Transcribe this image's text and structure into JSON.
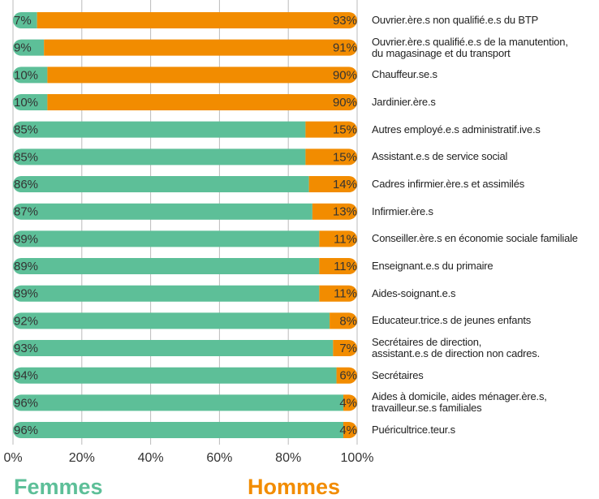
{
  "chart_data": {
    "type": "stacked-bar-horizontal",
    "categories": [
      "Ouvrier.ère.s non qualifié.e.s du BTP",
      "Ouvrier.ère.s qualifié.e.s de la manutention,\ndu magasinage et du transport",
      "Chauffeur.se.s",
      "Jardinier.ère.s",
      "Autres employé.e.s administratif.ive.s",
      "Assistant.e.s de service social",
      "Cadres infirmier.ère.s et assimilés",
      "Infirmier.ère.s",
      "Conseiller.ère.s en économie sociale familiale",
      "Enseignant.e.s du primaire",
      "Aides-soignant.e.s",
      "Educateur.trice.s de jeunes enfants",
      "Secrétaires de direction,\nassistant.e.s de direction non cadres.",
      "Secrétaires",
      "Aides à domicile, aides ménager.ère.s,\ntravailleur.se.s familiales",
      "Puéricultrice.teur.s"
    ],
    "series": [
      {
        "name": "Femmes",
        "color": "#5dbf98",
        "values": [
          7,
          9,
          10,
          10,
          85,
          85,
          86,
          87,
          89,
          89,
          89,
          92,
          93,
          94,
          96,
          96
        ],
        "value_labels": [
          "7%",
          "9%",
          "10%",
          "10%",
          "85%",
          "85%",
          "86%",
          "87%",
          "89%",
          "89%",
          "89%",
          "92%",
          "93%",
          "94%",
          "96%",
          "96%"
        ]
      },
      {
        "name": "Hommes",
        "color": "#f28c00",
        "values": [
          93,
          91,
          90,
          90,
          15,
          15,
          14,
          13,
          11,
          11,
          11,
          8,
          7,
          6,
          4,
          4
        ],
        "value_labels": [
          "93%",
          "91%",
          "90%",
          "90%",
          "15%",
          "15%",
          "14%",
          "13%",
          "11%",
          "11%",
          "11%",
          "8%",
          "7%",
          "6%",
          "4%",
          "4%"
        ]
      }
    ],
    "xlim": [
      0,
      100
    ],
    "xticks": [
      {
        "value": 0,
        "label": "0%"
      },
      {
        "value": 20,
        "label": "20%"
      },
      {
        "value": 40,
        "label": "40%"
      },
      {
        "value": 60,
        "label": "60%"
      },
      {
        "value": 80,
        "label": "80%"
      },
      {
        "value": 100,
        "label": "100%"
      }
    ],
    "grid": true
  }
}
